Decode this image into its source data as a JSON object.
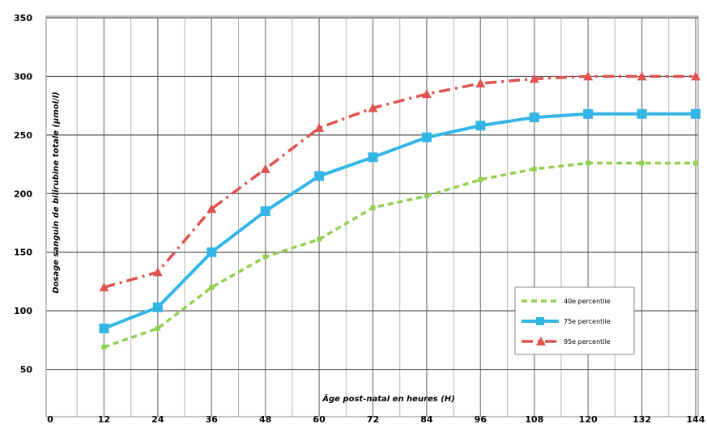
{
  "chart_data": {
    "type": "line",
    "x": [
      12,
      24,
      36,
      48,
      60,
      72,
      84,
      96,
      108,
      120,
      132,
      144
    ],
    "xticks": [
      0,
      12,
      24,
      36,
      48,
      60,
      72,
      84,
      96,
      108,
      120,
      132,
      144
    ],
    "xlabel": "Âge post-natal en heures (H)",
    "ylabel": "Dosage sanguin de bilirubine totale (µmol/l)",
    "yticks": [
      50,
      100,
      150,
      200,
      250,
      300,
      350
    ],
    "ylim": [
      0,
      350
    ],
    "xlim": [
      0,
      144
    ],
    "grid": true,
    "legend_position": "bottom-right",
    "series": [
      {
        "name": "40e percentile",
        "color": "#92d050",
        "style": "dashed",
        "values": [
          69,
          85,
          120,
          146,
          161,
          188,
          198,
          212,
          221,
          226,
          226,
          226
        ]
      },
      {
        "name": "75e percentile",
        "color": "#33b5e5",
        "style": "solid",
        "values": [
          85,
          103,
          150,
          185,
          215,
          231,
          248,
          258,
          265,
          268,
          268,
          268
        ]
      },
      {
        "name": "95e percentile",
        "color": "#e0534f",
        "style": "dashdot",
        "values": [
          120,
          133,
          187,
          221,
          256,
          273,
          285,
          294,
          298,
          300,
          300,
          300
        ]
      }
    ]
  }
}
